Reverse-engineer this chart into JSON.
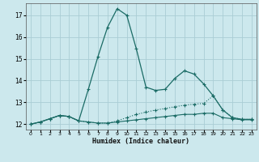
{
  "xlabel": "Humidex (Indice chaleur)",
  "bg_color": "#cce8ed",
  "grid_color": "#aacdd5",
  "line_color": "#1a6b65",
  "xlim": [
    -0.5,
    23.5
  ],
  "ylim": [
    11.75,
    17.55
  ],
  "yticks": [
    12,
    13,
    14,
    15,
    16,
    17
  ],
  "xticks": [
    0,
    1,
    2,
    3,
    4,
    5,
    6,
    7,
    8,
    9,
    10,
    11,
    12,
    13,
    14,
    15,
    16,
    17,
    18,
    19,
    20,
    21,
    22,
    23
  ],
  "line_bottom_y": [
    12.0,
    12.1,
    12.25,
    12.4,
    12.35,
    12.15,
    12.1,
    12.05,
    12.05,
    12.1,
    12.15,
    12.2,
    12.25,
    12.3,
    12.35,
    12.4,
    12.45,
    12.45,
    12.5,
    12.5,
    12.3,
    12.25,
    12.2,
    12.2
  ],
  "line_mid_y": [
    12.0,
    12.1,
    12.25,
    12.4,
    12.35,
    12.15,
    12.1,
    12.05,
    12.05,
    12.15,
    12.3,
    12.45,
    12.55,
    12.65,
    12.72,
    12.8,
    12.87,
    12.92,
    12.95,
    13.3,
    12.65,
    12.3,
    12.22,
    12.22
  ],
  "line_peak_y": [
    12.0,
    12.1,
    12.25,
    12.4,
    12.35,
    12.15,
    13.6,
    15.1,
    16.45,
    17.3,
    17.0,
    15.45,
    13.7,
    13.55,
    13.6,
    14.1,
    14.45,
    14.3,
    13.85,
    13.3,
    12.65,
    12.3,
    12.22,
    12.22
  ]
}
